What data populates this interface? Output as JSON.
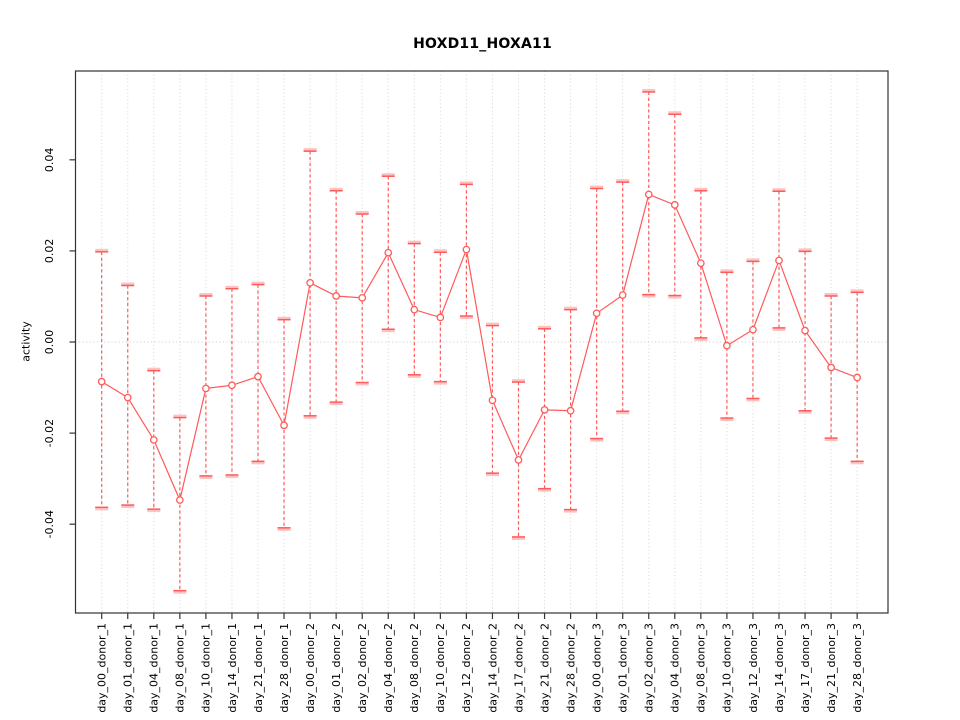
{
  "chart_data": {
    "type": "line",
    "title": "HOXD11_HOXA11",
    "xlabel": "",
    "ylabel": "activity",
    "ylim": [
      -0.0595,
      0.0595
    ],
    "yticks": [
      -0.04,
      -0.02,
      0.0,
      0.02,
      0.04
    ],
    "ytick_labels": [
      "-0.04",
      "-0.02",
      "0.00",
      "0.02",
      "0.04"
    ],
    "grid": "vertical dotted line per category, horizontal dotted line at y=0",
    "legend": "none",
    "marker": "open-circle",
    "error_bar_style": "dashed vertical line with capped ends",
    "categories": [
      "day_00_donor_1",
      "day_01_donor_1",
      "day_04_donor_1",
      "day_08_donor_1",
      "day_10_donor_1",
      "day_14_donor_1",
      "day_21_donor_1",
      "day_28_donor_1",
      "day_00_donor_2",
      "day_01_donor_2",
      "day_02_donor_2",
      "day_04_donor_2",
      "day_08_donor_2",
      "day_10_donor_2",
      "day_12_donor_2",
      "day_14_donor_2",
      "day_17_donor_2",
      "day_21_donor_2",
      "day_28_donor_2",
      "day_00_donor_3",
      "day_01_donor_3",
      "day_02_donor_3",
      "day_04_donor_3",
      "day_08_donor_3",
      "day_10_donor_3",
      "day_12_donor_3",
      "day_14_donor_3",
      "day_17_donor_3",
      "day_21_donor_3",
      "day_28_donor_3"
    ],
    "series": [
      {
        "name": "activity",
        "values": [
          -0.0087,
          -0.0122,
          -0.0215,
          -0.0347,
          -0.0102,
          -0.0095,
          -0.0076,
          -0.0183,
          0.013,
          0.0101,
          0.0097,
          0.0196,
          0.0071,
          0.0054,
          0.0203,
          -0.0128,
          -0.0259,
          -0.0149,
          -0.0151,
          0.0063,
          0.0103,
          0.0324,
          0.0301,
          0.0173,
          -0.0008,
          0.0027,
          0.0179,
          0.0025,
          -0.0056,
          -0.0078
        ],
        "error_low": [
          -0.0363,
          -0.0358,
          -0.0367,
          -0.0546,
          -0.0294,
          -0.0292,
          -0.0262,
          -0.0408,
          -0.0162,
          -0.0132,
          -0.0089,
          0.0028,
          -0.0072,
          -0.0087,
          0.0057,
          -0.0288,
          -0.0428,
          -0.0322,
          -0.0368,
          -0.0212,
          -0.0152,
          0.0104,
          0.0102,
          0.0009,
          -0.0167,
          -0.0124,
          0.0031,
          -0.0151,
          -0.0211,
          -0.0262
        ],
        "error_high": [
          0.0198,
          0.0124,
          -0.0063,
          -0.0166,
          0.0101,
          0.0117,
          0.0126,
          0.0049,
          0.0419,
          0.0332,
          0.0281,
          0.0364,
          0.0216,
          0.0197,
          0.0346,
          0.0036,
          -0.0088,
          0.0029,
          0.0071,
          0.0337,
          0.0351,
          0.0549,
          0.05,
          0.0332,
          0.0153,
          0.0177,
          0.0331,
          0.0199,
          0.0101,
          0.0109
        ]
      }
    ],
    "colors": {
      "series": "#ff5a5a",
      "cap_halo": "#ffb3b3",
      "grid": "#d6d6d6",
      "zero_line": "#cccccc",
      "box": "#333333",
      "tick": "#333333",
      "text": "#000000",
      "background": "#ffffff"
    }
  }
}
